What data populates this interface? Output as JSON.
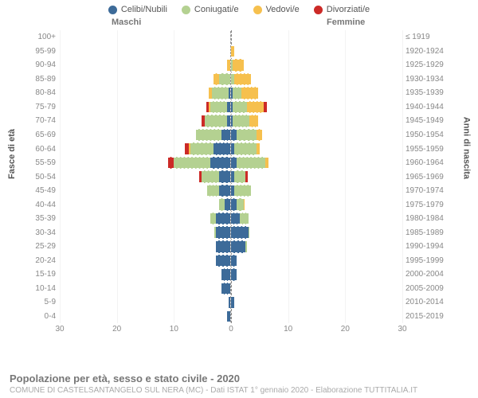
{
  "chart": {
    "type": "population-pyramid",
    "xmax": 30,
    "xticks": [
      30,
      20,
      10,
      0,
      10,
      20,
      30
    ],
    "genders": {
      "male": "Maschi",
      "female": "Femmine"
    },
    "ylabels": {
      "left": "Fasce di età",
      "right": "Anni di nascita"
    },
    "categories": [
      {
        "name": "celibi",
        "label": "Celibi/Nubili",
        "color": "#3d6b99"
      },
      {
        "name": "coniugati",
        "label": "Coniugati/e",
        "color": "#b4d191"
      },
      {
        "name": "vedovi",
        "label": "Vedovi/e",
        "color": "#f6c04e"
      },
      {
        "name": "divorziati",
        "label": "Divorziati/e",
        "color": "#cc2a27"
      }
    ],
    "grid_color": "#f3f3f3",
    "center_line_color": "#888888",
    "background_color": "#ffffff",
    "bar_separator_color": "#ffffff",
    "label_fontsize": 10,
    "axis_fontsize": 10,
    "rows": [
      {
        "age": "100+",
        "birth": "≤ 1919",
        "m": {
          "celibi": 0,
          "coniugati": 0,
          "vedovi": 0,
          "divorziati": 0
        },
        "f": {
          "celibi": 0,
          "coniugati": 0,
          "vedovi": 0,
          "divorziati": 0
        }
      },
      {
        "age": "95-99",
        "birth": "1920-1924",
        "m": {
          "celibi": 0,
          "coniugati": 0,
          "vedovi": 0,
          "divorziati": 0
        },
        "f": {
          "celibi": 0,
          "coniugati": 0,
          "vedovi": 1,
          "divorziati": 0
        }
      },
      {
        "age": "90-94",
        "birth": "1925-1929",
        "m": {
          "celibi": 0,
          "coniugati": 0,
          "vedovi": 1,
          "divorziati": 0
        },
        "f": {
          "celibi": 0,
          "coniugati": 0.5,
          "vedovi": 4,
          "divorziati": 0
        }
      },
      {
        "age": "85-89",
        "birth": "1930-1934",
        "m": {
          "celibi": 0,
          "coniugati": 4,
          "vedovi": 2,
          "divorziati": 0
        },
        "f": {
          "celibi": 0,
          "coniugati": 1,
          "vedovi": 6,
          "divorziati": 0
        }
      },
      {
        "age": "80-84",
        "birth": "1935-1939",
        "m": {
          "celibi": 0.5,
          "coniugati": 6,
          "vedovi": 1,
          "divorziati": 0
        },
        "f": {
          "celibi": 0.5,
          "coniugati": 3,
          "vedovi": 6,
          "divorziati": 0
        }
      },
      {
        "age": "75-79",
        "birth": "1940-1944",
        "m": {
          "celibi": 1,
          "coniugati": 6,
          "vedovi": 0.5,
          "divorziati": 1
        },
        "f": {
          "celibi": 0.5,
          "coniugati": 5,
          "vedovi": 6,
          "divorziati": 1
        }
      },
      {
        "age": "70-74",
        "birth": "1945-1949",
        "m": {
          "celibi": 1,
          "coniugati": 8,
          "vedovi": 0,
          "divorziati": 1
        },
        "f": {
          "celibi": 0.5,
          "coniugati": 6,
          "vedovi": 3,
          "divorziati": 0
        }
      },
      {
        "age": "65-69",
        "birth": "1950-1954",
        "m": {
          "celibi": 3,
          "coniugati": 9,
          "vedovi": 0,
          "divorziati": 0
        },
        "f": {
          "celibi": 2,
          "coniugati": 7,
          "vedovi": 2,
          "divorziati": 0
        }
      },
      {
        "age": "60-64",
        "birth": "1955-1959",
        "m": {
          "celibi": 6,
          "coniugati": 8,
          "vedovi": 0.5,
          "divorziati": 1.5
        },
        "f": {
          "celibi": 1,
          "coniugati": 8,
          "vedovi": 1,
          "divorziati": 0
        }
      },
      {
        "age": "55-59",
        "birth": "1960-1964",
        "m": {
          "celibi": 7,
          "coniugati": 13,
          "vedovi": 0,
          "divorziati": 2
        },
        "f": {
          "celibi": 2,
          "coniugati": 10,
          "vedovi": 1,
          "divorziati": 0
        }
      },
      {
        "age": "50-54",
        "birth": "1965-1969",
        "m": {
          "celibi": 4,
          "coniugati": 6,
          "vedovi": 0,
          "divorziati": 1
        },
        "f": {
          "celibi": 1,
          "coniugati": 4,
          "vedovi": 0,
          "divorziati": 1
        }
      },
      {
        "age": "45-49",
        "birth": "1970-1974",
        "m": {
          "celibi": 4,
          "coniugati": 4,
          "vedovi": 0,
          "divorziati": 0
        },
        "f": {
          "celibi": 1,
          "coniugati": 6,
          "vedovi": 0,
          "divorziati": 0
        }
      },
      {
        "age": "40-44",
        "birth": "1975-1979",
        "m": {
          "celibi": 2,
          "coniugati": 2,
          "vedovi": 0,
          "divorziati": 0
        },
        "f": {
          "celibi": 2,
          "coniugati": 2.5,
          "vedovi": 0.3,
          "divorziati": 0
        }
      },
      {
        "age": "35-39",
        "birth": "1980-1984",
        "m": {
          "celibi": 5,
          "coniugati": 2,
          "vedovi": 0,
          "divorziati": 0
        },
        "f": {
          "celibi": 3,
          "coniugati": 3,
          "vedovi": 0,
          "divorziati": 0
        }
      },
      {
        "age": "30-34",
        "birth": "1985-1989",
        "m": {
          "celibi": 5,
          "coniugati": 0.5,
          "vedovi": 0,
          "divorziati": 0
        },
        "f": {
          "celibi": 6,
          "coniugati": 0.5,
          "vedovi": 0,
          "divorziati": 0
        }
      },
      {
        "age": "25-29",
        "birth": "1990-1994",
        "m": {
          "celibi": 5,
          "coniugati": 0,
          "vedovi": 0,
          "divorziati": 0
        },
        "f": {
          "celibi": 5,
          "coniugati": 0.5,
          "vedovi": 0,
          "divorziati": 0
        }
      },
      {
        "age": "20-24",
        "birth": "1995-1999",
        "m": {
          "celibi": 5,
          "coniugati": 0,
          "vedovi": 0,
          "divorziati": 0
        },
        "f": {
          "celibi": 2,
          "coniugati": 0,
          "vedovi": 0,
          "divorziati": 0
        }
      },
      {
        "age": "15-19",
        "birth": "2000-2004",
        "m": {
          "celibi": 3,
          "coniugati": 0,
          "vedovi": 0,
          "divorziati": 0
        },
        "f": {
          "celibi": 2,
          "coniugati": 0,
          "vedovi": 0,
          "divorziati": 0
        }
      },
      {
        "age": "10-14",
        "birth": "2005-2009",
        "m": {
          "celibi": 3,
          "coniugati": 0,
          "vedovi": 0,
          "divorziati": 0
        },
        "f": {
          "celibi": 0,
          "coniugati": 0,
          "vedovi": 0,
          "divorziati": 0
        }
      },
      {
        "age": "5-9",
        "birth": "2010-2014",
        "m": {
          "celibi": 0.5,
          "coniugati": 0,
          "vedovi": 0,
          "divorziati": 0
        },
        "f": {
          "celibi": 1,
          "coniugati": 0,
          "vedovi": 0,
          "divorziati": 0
        }
      },
      {
        "age": "0-4",
        "birth": "2015-2019",
        "m": {
          "celibi": 1,
          "coniugati": 0,
          "vedovi": 0,
          "divorziati": 0
        },
        "f": {
          "celibi": 0,
          "coniugati": 0,
          "vedovi": 0,
          "divorziati": 0
        }
      }
    ]
  },
  "footer": {
    "title": "Popolazione per età, sesso e stato civile - 2020",
    "source": "COMUNE DI CASTELSANTANGELO SUL NERA (MC) - Dati ISTAT 1° gennaio 2020 - Elaborazione TUTTITALIA.IT"
  }
}
